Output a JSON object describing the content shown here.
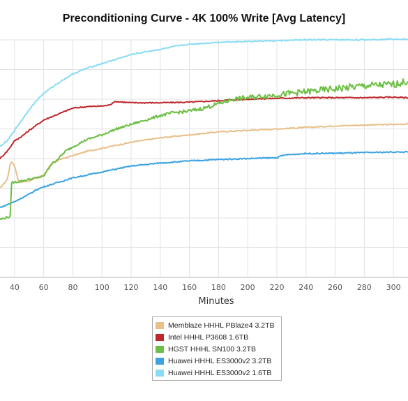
{
  "chart_data": {
    "type": "line",
    "title": "Preconditioning Curve - 4K 100% Write [Avg Latency]",
    "xlabel": "Minutes",
    "ylabel": "",
    "xlim": [
      30,
      310
    ],
    "ylim": [
      0,
      8
    ],
    "x_ticks": [
      40,
      60,
      80,
      100,
      120,
      140,
      160,
      180,
      200,
      220,
      240,
      260,
      280,
      300
    ],
    "grid": true,
    "legend_position": "bottom-center",
    "series": [
      {
        "name": "Memblaze HHHL PBlaze4 3.2TB",
        "color": "#e8c08a",
        "points": [
          [
            30,
            3.0
          ],
          [
            35,
            3.3
          ],
          [
            37,
            3.8
          ],
          [
            38,
            3.9
          ],
          [
            40,
            3.75
          ],
          [
            43,
            3.2
          ],
          [
            50,
            3.25
          ],
          [
            60,
            3.45
          ],
          [
            65,
            3.8
          ],
          [
            70,
            3.95
          ],
          [
            80,
            4.1
          ],
          [
            90,
            4.25
          ],
          [
            100,
            4.35
          ],
          [
            110,
            4.45
          ],
          [
            120,
            4.55
          ],
          [
            140,
            4.7
          ],
          [
            160,
            4.8
          ],
          [
            180,
            4.9
          ],
          [
            200,
            4.95
          ],
          [
            220,
            5.0
          ],
          [
            240,
            5.05
          ],
          [
            260,
            5.1
          ],
          [
            280,
            5.13
          ],
          [
            300,
            5.15
          ],
          [
            310,
            5.17
          ]
        ]
      },
      {
        "name": "Intel HHHL P3608 1.6TB",
        "color": "#c0272d",
        "points": [
          [
            30,
            4.0
          ],
          [
            35,
            4.25
          ],
          [
            40,
            4.6
          ],
          [
            45,
            4.75
          ],
          [
            50,
            4.95
          ],
          [
            60,
            5.3
          ],
          [
            70,
            5.5
          ],
          [
            80,
            5.7
          ],
          [
            90,
            5.75
          ],
          [
            100,
            5.77
          ],
          [
            105,
            5.8
          ],
          [
            108,
            5.9
          ],
          [
            110,
            5.92
          ],
          [
            120,
            5.88
          ],
          [
            140,
            5.88
          ],
          [
            160,
            5.9
          ],
          [
            180,
            5.95
          ],
          [
            200,
            6.0
          ],
          [
            220,
            6.03
          ],
          [
            240,
            6.05
          ],
          [
            260,
            6.05
          ],
          [
            280,
            6.05
          ],
          [
            300,
            6.07
          ],
          [
            310,
            6.05
          ]
        ]
      },
      {
        "name": "HGST HHHL SN100 3.2TB",
        "color": "#6cbe45",
        "points": [
          [
            30,
            1.95
          ],
          [
            37,
            2.05
          ],
          [
            38,
            3.2
          ],
          [
            40,
            3.2
          ],
          [
            45,
            3.25
          ],
          [
            55,
            3.35
          ],
          [
            60,
            3.4
          ],
          [
            65,
            3.8
          ],
          [
            70,
            4.0
          ],
          [
            75,
            4.25
          ],
          [
            80,
            4.4
          ],
          [
            90,
            4.65
          ],
          [
            100,
            4.8
          ],
          [
            110,
            5.0
          ],
          [
            120,
            5.15
          ],
          [
            130,
            5.3
          ],
          [
            140,
            5.45
          ],
          [
            150,
            5.55
          ],
          [
            160,
            5.6
          ],
          [
            170,
            5.7
          ],
          [
            180,
            5.85
          ],
          [
            190,
            6.0
          ],
          [
            200,
            6.05
          ],
          [
            210,
            6.1
          ],
          [
            220,
            6.15
          ],
          [
            240,
            6.25
          ],
          [
            260,
            6.35
          ],
          [
            280,
            6.45
          ],
          [
            300,
            6.5
          ],
          [
            310,
            6.6
          ]
        ]
      },
      {
        "name": "Huawei HHHL ES3000v2 3.2TB",
        "color": "#3aa3e0",
        "points": [
          [
            30,
            2.35
          ],
          [
            40,
            2.55
          ],
          [
            50,
            2.8
          ],
          [
            55,
            2.95
          ],
          [
            60,
            3.05
          ],
          [
            70,
            3.2
          ],
          [
            80,
            3.35
          ],
          [
            90,
            3.45
          ],
          [
            100,
            3.55
          ],
          [
            110,
            3.65
          ],
          [
            120,
            3.75
          ],
          [
            140,
            3.85
          ],
          [
            160,
            3.92
          ],
          [
            180,
            3.97
          ],
          [
            200,
            4.0
          ],
          [
            220,
            4.03
          ],
          [
            225,
            4.12
          ],
          [
            240,
            4.17
          ],
          [
            260,
            4.18
          ],
          [
            280,
            4.2
          ],
          [
            300,
            4.22
          ],
          [
            310,
            4.22
          ]
        ]
      },
      {
        "name": "Huawei HHHL ES3000v2 1.6TB",
        "color": "#8adcf4",
        "points": [
          [
            30,
            4.4
          ],
          [
            35,
            4.6
          ],
          [
            40,
            4.95
          ],
          [
            45,
            5.3
          ],
          [
            50,
            5.65
          ],
          [
            55,
            5.95
          ],
          [
            60,
            6.2
          ],
          [
            70,
            6.55
          ],
          [
            80,
            6.85
          ],
          [
            90,
            7.05
          ],
          [
            100,
            7.2
          ],
          [
            110,
            7.35
          ],
          [
            120,
            7.5
          ],
          [
            130,
            7.6
          ],
          [
            140,
            7.68
          ],
          [
            150,
            7.78
          ],
          [
            160,
            7.85
          ],
          [
            180,
            7.92
          ],
          [
            200,
            7.95
          ],
          [
            220,
            7.97
          ],
          [
            240,
            8.0
          ],
          [
            260,
            8.0
          ],
          [
            280,
            8.0
          ],
          [
            300,
            8.03
          ],
          [
            310,
            8.02
          ]
        ]
      }
    ]
  }
}
